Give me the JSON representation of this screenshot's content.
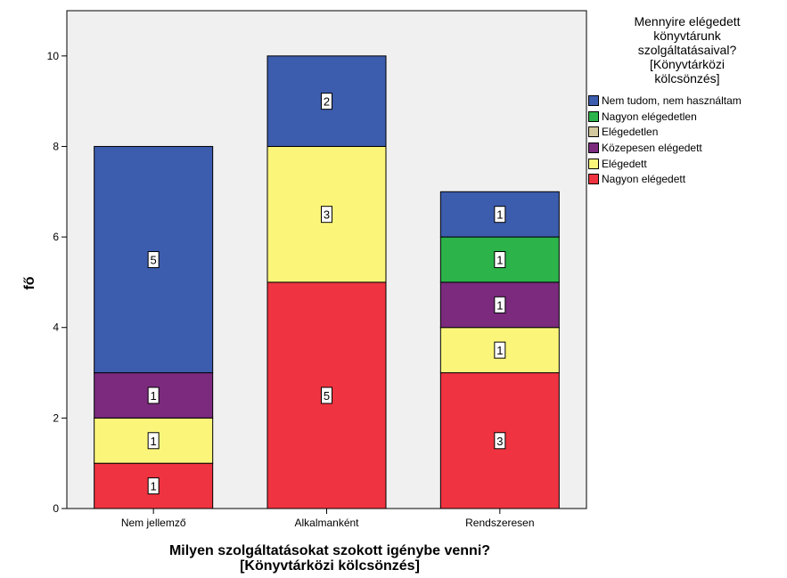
{
  "chart_data": {
    "type": "bar",
    "stacked": true,
    "categories": [
      "Nem jellemző",
      "Alkalmanként",
      "Rendszeresen"
    ],
    "series": [
      {
        "name": "Nagyon elégedett",
        "color": "#ef3340",
        "values": [
          1,
          5,
          3
        ]
      },
      {
        "name": "Elégedett",
        "color": "#fbf67a",
        "values": [
          1,
          3,
          1
        ]
      },
      {
        "name": "Közepesen elégedett",
        "color": "#7b2a7e",
        "values": [
          1,
          0,
          1
        ]
      },
      {
        "name": "Elégedetlen",
        "color": "#d3c99e",
        "values": [
          0,
          0,
          0
        ]
      },
      {
        "name": "Nagyon elégedetlen",
        "color": "#2cb34a",
        "values": [
          0,
          0,
          1
        ]
      },
      {
        "name": "Nem tudom, nem használtam",
        "color": "#3c5cae",
        "values": [
          5,
          2,
          1
        ]
      }
    ],
    "xlabel": "Milyen szolgáltatásokat szokott igénybe venni?\n[Könyvtárközi kölcsönzés]",
    "ylabel": "fő",
    "ylim": [
      0,
      11
    ],
    "yticks": [
      0,
      2,
      4,
      6,
      8,
      10
    ],
    "legend": {
      "title": "Mennyire elégedett\nkönyvtárunk\nszolgáltatásaival?\n[Könyvtárközi\nkölcsönzés]",
      "position": "right",
      "items": [
        {
          "label": "Nem tudom, nem használtam",
          "color": "#3c5cae"
        },
        {
          "label": "Nagyon elégedetlen",
          "color": "#2cb34a"
        },
        {
          "label": "Elégedetlen",
          "color": "#d3c99e"
        },
        {
          "label": "Közepesen elégedett",
          "color": "#7b2a7e"
        },
        {
          "label": "Elégedett",
          "color": "#fbf67a"
        },
        {
          "label": "Nagyon elégedett",
          "color": "#ef3340"
        }
      ]
    },
    "plot_background": "#f0f0f0",
    "grid": false
  }
}
